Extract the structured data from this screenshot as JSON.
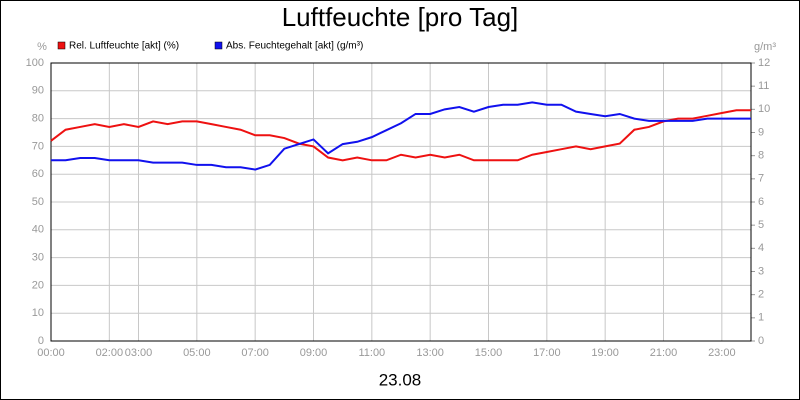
{
  "chart_data": {
    "type": "line",
    "title": "Luftfeuchte [pro Tag]",
    "xlabel": "23.08",
    "ylabel": "%",
    "y2label": "g/m³",
    "x": [
      0,
      0.5,
      1,
      1.5,
      2,
      2.5,
      3,
      3.5,
      4,
      4.5,
      5,
      5.5,
      6,
      6.5,
      7,
      7.5,
      8,
      8.5,
      9,
      9.5,
      10,
      10.5,
      11,
      11.5,
      12,
      12.5,
      13,
      13.5,
      14,
      14.5,
      15,
      15.5,
      16,
      16.5,
      17,
      17.5,
      18,
      18.5,
      19,
      19.5,
      20,
      20.5,
      21,
      21.5,
      22,
      22.5,
      23,
      23.5,
      24
    ],
    "series": [
      {
        "name": "Rel. Luftfeuchte [akt] (%)",
        "color": "#ee1111",
        "values": [
          72,
          76,
          77,
          78,
          77,
          78,
          77,
          79,
          78,
          79,
          79,
          78,
          77,
          76,
          74,
          74,
          73,
          71,
          70,
          66,
          65,
          66,
          65,
          65,
          67,
          66,
          67,
          66,
          67,
          65,
          65,
          65,
          65,
          67,
          68,
          69,
          70,
          69,
          70,
          71,
          76,
          77,
          79,
          80,
          80,
          81,
          82,
          83,
          83
        ]
      },
      {
        "name": "Abs. Feuchtegehalt [akt] (g/m³)",
        "color": "#1111ee",
        "axis": "y2",
        "values": [
          7.8,
          7.8,
          7.9,
          7.9,
          7.8,
          7.8,
          7.8,
          7.7,
          7.7,
          7.7,
          7.6,
          7.6,
          7.5,
          7.5,
          7.4,
          7.6,
          8.3,
          8.5,
          8.7,
          8.1,
          8.5,
          8.6,
          8.8,
          9.1,
          9.4,
          9.8,
          9.8,
          10.0,
          10.1,
          9.9,
          10.1,
          10.2,
          10.2,
          10.3,
          10.2,
          10.2,
          9.9,
          9.8,
          9.7,
          9.8,
          9.6,
          9.5,
          9.5,
          9.5,
          9.5,
          9.6,
          9.6,
          9.6,
          9.6
        ]
      }
    ],
    "xlim": [
      0,
      24
    ],
    "xticks": [
      {
        "value": 0,
        "label": "00:00"
      },
      {
        "value": 2,
        "label": "02:00"
      },
      {
        "value": 3,
        "label": "03:00"
      },
      {
        "value": 5,
        "label": "05:00"
      },
      {
        "value": 7,
        "label": "07:00"
      },
      {
        "value": 9,
        "label": "09:00"
      },
      {
        "value": 11,
        "label": "11:00"
      },
      {
        "value": 13,
        "label": "13:00"
      },
      {
        "value": 15,
        "label": "15:00"
      },
      {
        "value": 17,
        "label": "17:00"
      },
      {
        "value": 19,
        "label": "19:00"
      },
      {
        "value": 21,
        "label": "21:00"
      },
      {
        "value": 23,
        "label": "23:00"
      }
    ],
    "ylim": [
      0,
      100
    ],
    "yticks": [
      0,
      10,
      20,
      30,
      40,
      50,
      60,
      70,
      80,
      90,
      100
    ],
    "y2lim": [
      0,
      12
    ],
    "y2ticks": [
      0,
      1,
      2,
      3,
      4,
      5,
      6,
      7,
      8,
      9,
      10,
      11,
      12
    ],
    "grid": true
  }
}
